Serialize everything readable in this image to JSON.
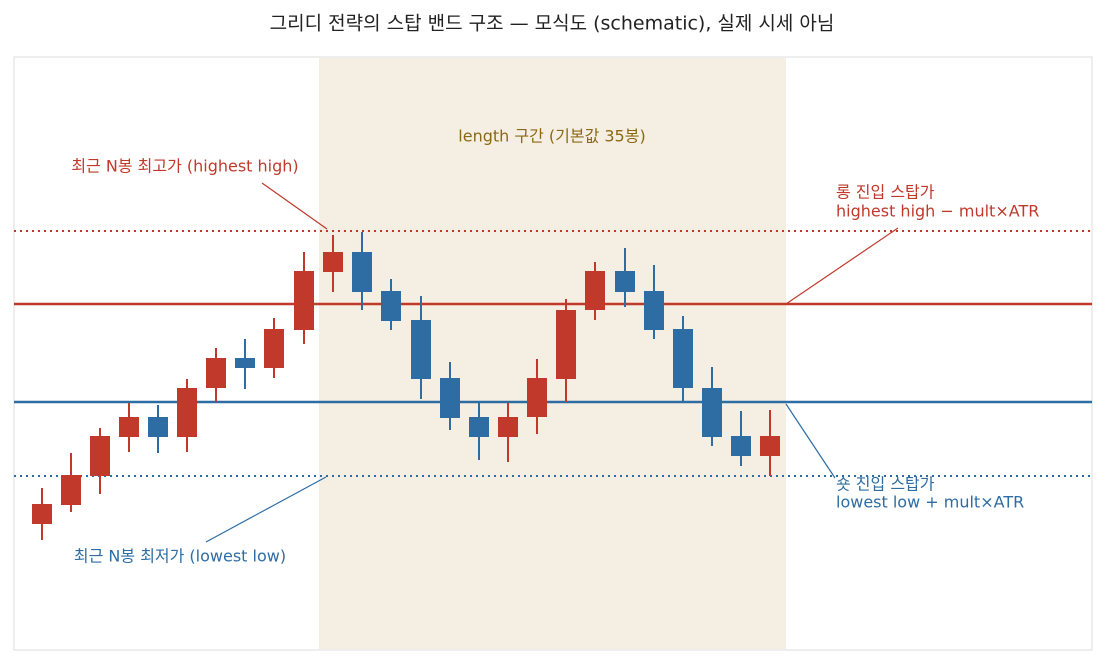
{
  "title": "그리디 전략의 스탑 밴드 구조 — 모식도 (schematic), 실제 시세 아님",
  "band_label": "length 구간 (기본값 35봉)",
  "annotations": {
    "highest_high": "최근 N봉 최고가 (highest high)",
    "long_stop": [
      "롱 진입 스탑가",
      "highest high − mult×ATR"
    ],
    "short_stop": [
      "숏 진입 스탑가",
      "lowest low + mult×ATR"
    ],
    "lowest_low": "최근 N봉 최저가 (lowest low)"
  }
}
